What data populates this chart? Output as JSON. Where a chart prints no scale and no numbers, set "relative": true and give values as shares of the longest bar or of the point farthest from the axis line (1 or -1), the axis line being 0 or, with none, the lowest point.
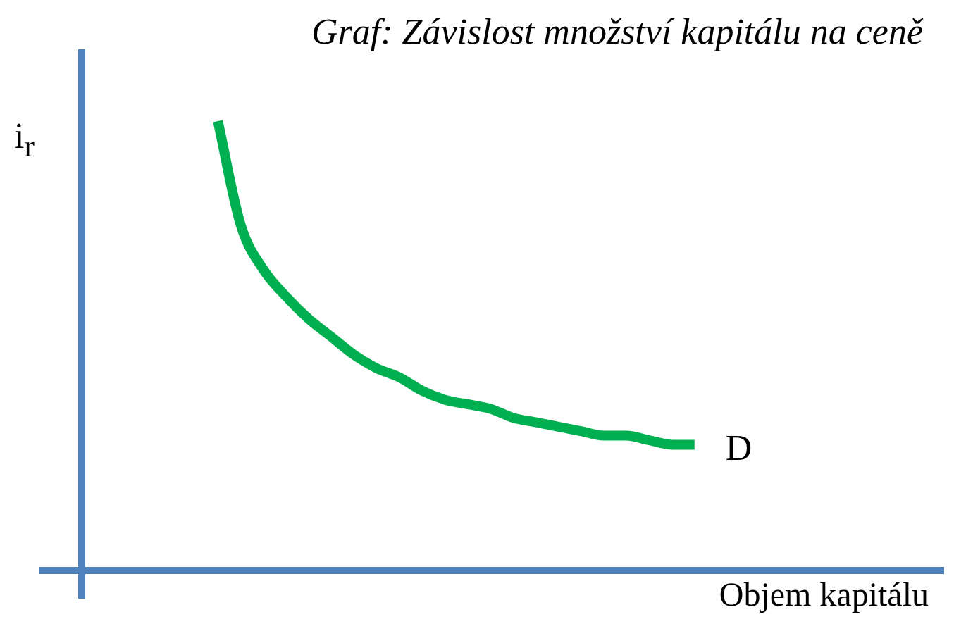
{
  "chart_data": {
    "type": "line",
    "title": "Graf: Závislost množství kapitálu na ceně",
    "xlabel": "Objem kapitálu",
    "ylabel": "i$_{r}$",
    "relative": true,
    "tick_labels": false,
    "legend": false,
    "categories": [
      null,
      null,
      null,
      null,
      null,
      null,
      null,
      null,
      null,
      null,
      null,
      null,
      null,
      null,
      null,
      null,
      null,
      null,
      null,
      null,
      null,
      null,
      null,
      null,
      null,
      null,
      null,
      null,
      null,
      null,
      null,
      null,
      null,
      null,
      null,
      null,
      null,
      null,
      null
    ],
    "series": [
      {
        "color": "#00b050",
        "values": [
          null,
          null,
          null,
          null,
          null,
          null,
          1,
          0.77,
          0.67,
          0.61,
          0.56,
          0.52,
          0.48,
          0.45,
          0.43,
          0.4,
          0.38,
          0.37,
          0.36,
          0.34,
          0.33,
          0.32,
          0.31,
          0.3,
          0.3,
          0.29,
          0.28,
          0.28,
          null,
          null,
          null,
          null,
          null,
          null,
          null,
          null,
          null,
          null,
          null
        ]
      }
    ],
    "annotations": [
      "D"
    ]
  }
}
